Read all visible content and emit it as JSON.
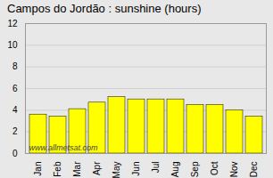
{
  "chart_data": {
    "type": "bar",
    "title": "Campos do Jordão : sunshine (hours)",
    "categories": [
      "Jan",
      "Feb",
      "Mar",
      "Apr",
      "May",
      "Jun",
      "Jul",
      "Aug",
      "Sep",
      "Oct",
      "Nov",
      "Dec"
    ],
    "values": [
      3.6,
      3.4,
      4.1,
      4.7,
      5.2,
      5.0,
      5.0,
      5.0,
      4.5,
      4.5,
      4.0,
      3.4
    ],
    "color": "#ffff00",
    "ylim": [
      0,
      12
    ],
    "yticks": [
      0,
      2,
      4,
      6,
      8,
      10,
      12
    ],
    "grid": true,
    "annotations": [
      "www.allmetsat.com"
    ]
  }
}
